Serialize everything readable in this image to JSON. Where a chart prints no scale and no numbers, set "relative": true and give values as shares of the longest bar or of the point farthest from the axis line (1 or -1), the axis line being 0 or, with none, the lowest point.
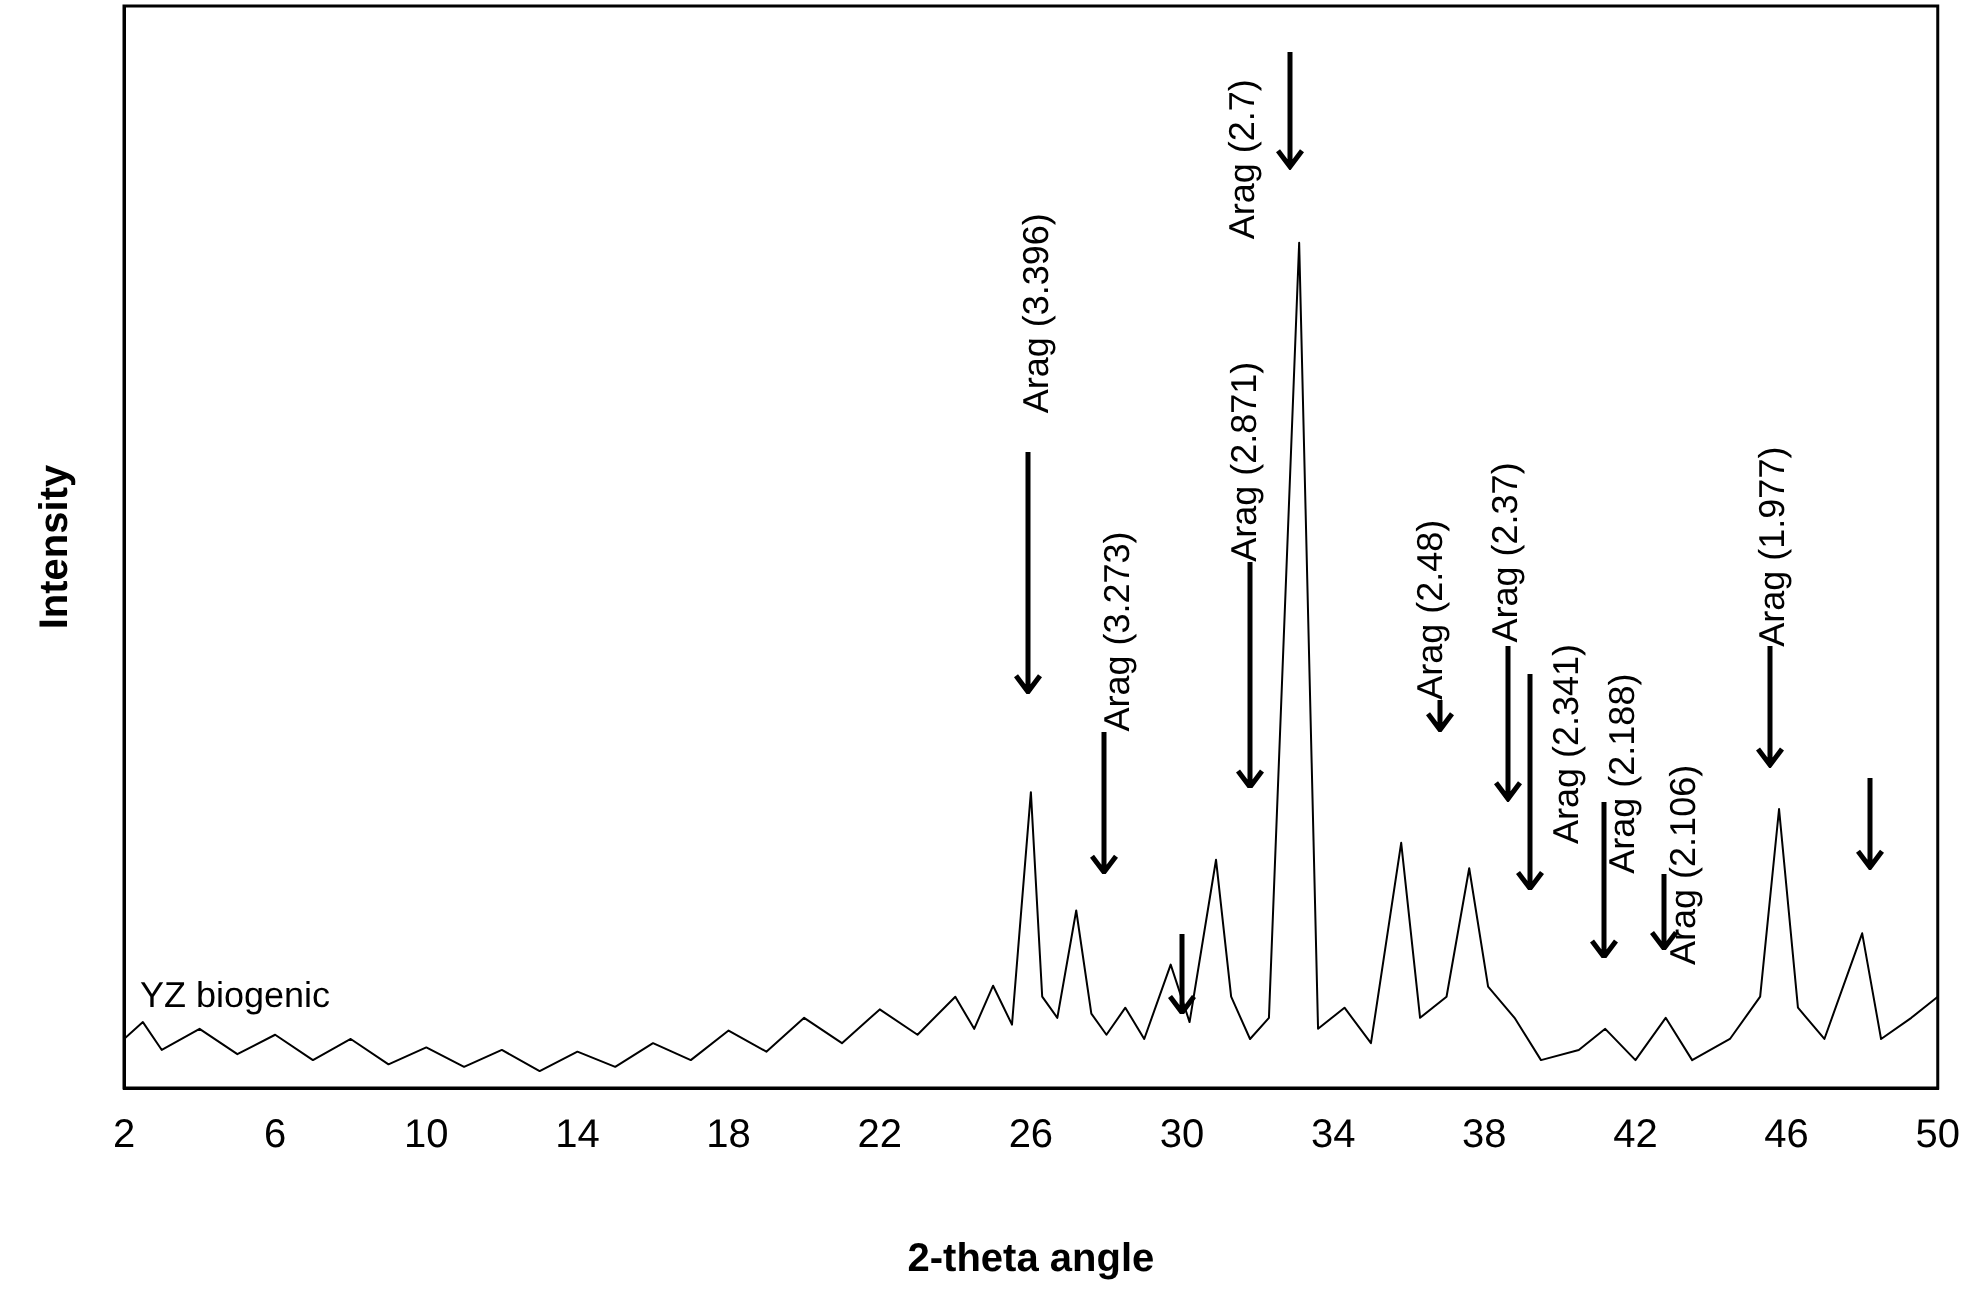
{
  "chart_data": {
    "type": "line",
    "relative": true,
    "xlabel": "2-theta angle",
    "ylabel": "Intensity",
    "xlim": [
      2,
      50
    ],
    "xticks": [
      2,
      6,
      10,
      14,
      18,
      22,
      26,
      30,
      34,
      38,
      42,
      46,
      50
    ],
    "grid": false,
    "legend": false,
    "marker": "none",
    "series": [
      {
        "name": "YZ biogenic",
        "color": "#000000",
        "x": [
          2,
          2.5,
          3,
          4,
          5,
          6,
          7,
          8,
          9,
          10,
          11,
          12,
          13,
          14,
          15,
          16,
          17,
          18,
          19,
          20,
          21,
          22,
          23,
          24,
          24.5,
          25,
          25.5,
          26,
          26.3,
          26.7,
          27.2,
          27.6,
          28,
          28.5,
          29,
          29.7,
          30.2,
          30.9,
          31.3,
          31.8,
          32.3,
          33.1,
          33.6,
          34.3,
          35,
          35.8,
          36.3,
          37,
          37.6,
          38.1,
          38.8,
          39.5,
          40.5,
          41.2,
          42,
          42.8,
          43.5,
          44.5,
          45.3,
          45.8,
          46.3,
          47,
          48,
          48.5,
          49.3,
          50
        ],
        "values": [
          0.058,
          0.078,
          0.045,
          0.07,
          0.04,
          0.063,
          0.033,
          0.058,
          0.028,
          0.048,
          0.025,
          0.045,
          0.02,
          0.043,
          0.025,
          0.053,
          0.033,
          0.068,
          0.043,
          0.083,
          0.053,
          0.093,
          0.063,
          0.108,
          0.07,
          0.121,
          0.075,
          0.35,
          0.108,
          0.083,
          0.21,
          0.088,
          0.063,
          0.095,
          0.058,
          0.146,
          0.078,
          0.27,
          0.108,
          0.058,
          0.083,
          1,
          0.07,
          0.095,
          0.053,
          0.29,
          0.083,
          0.108,
          0.26,
          0.12,
          0.083,
          0.033,
          0.045,
          0.07,
          0.033,
          0.083,
          0.033,
          0.058,
          0.108,
          0.33,
          0.095,
          0.058,
          0.183,
          0.058,
          0.083,
          0.108
        ]
      }
    ],
    "annotations": [
      "Arag (3.396)",
      "Arag (3.273)",
      "Arag (2.871)",
      "Arag (2.7)",
      "Arag (2.48)",
      "Arag (2.37)",
      "Arag (2.341)",
      "Arag (2.188)",
      "Arag (2.106)",
      "Arag (1.977)"
    ]
  }
}
